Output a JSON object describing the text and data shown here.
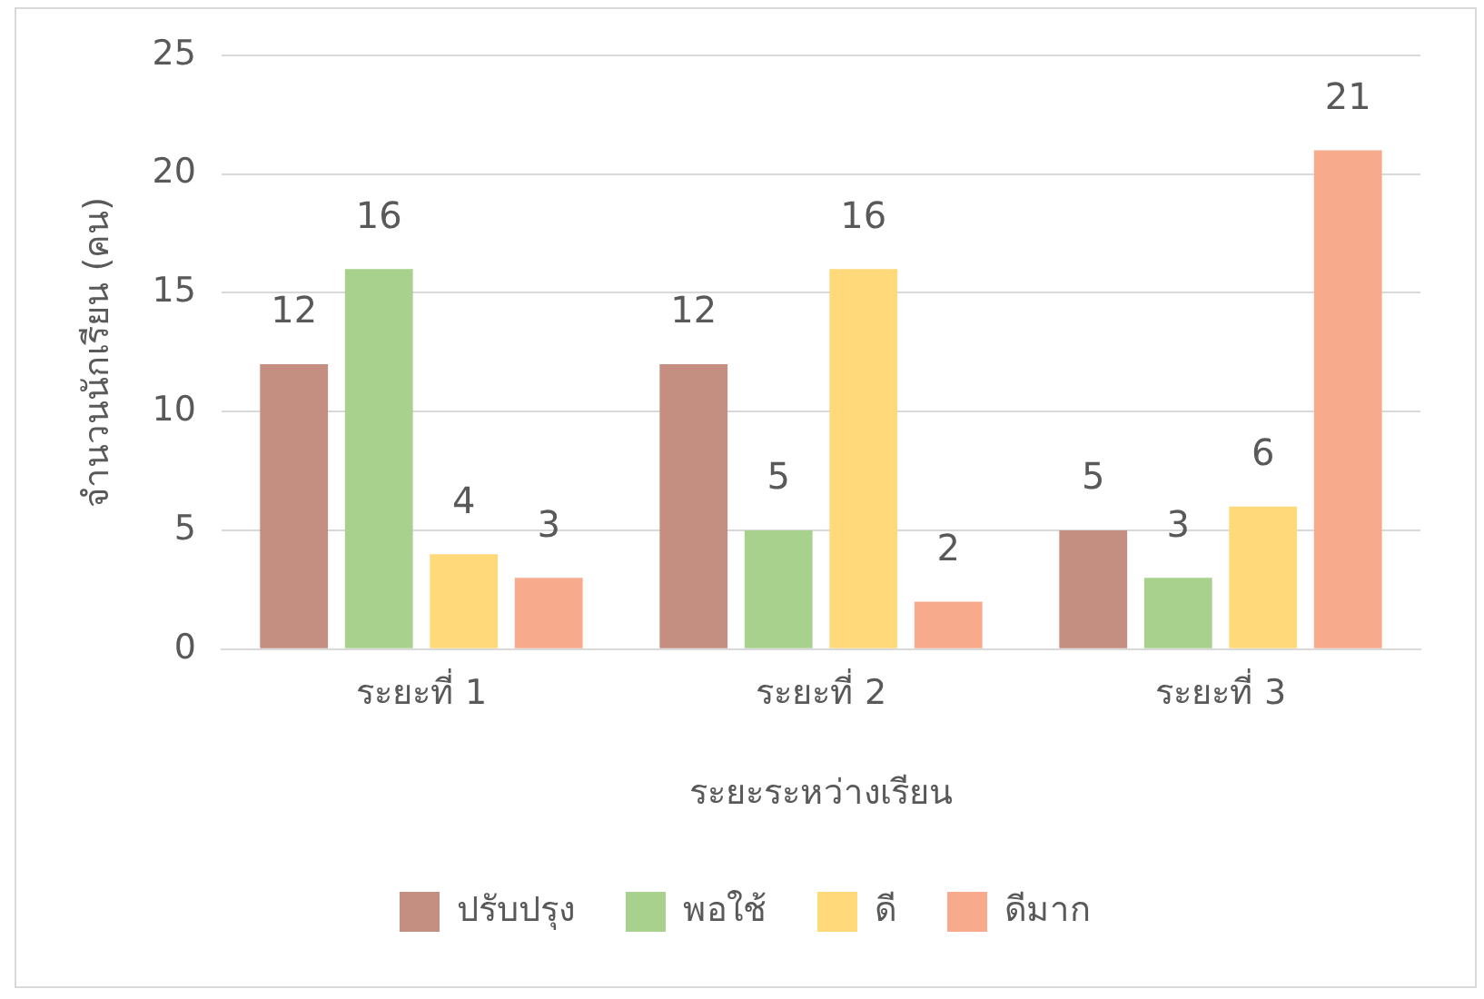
{
  "chart_data": {
    "type": "bar",
    "xlabel": "ระยะระหว่างเรียน",
    "ylabel": "จำนวนนักเรียน (คน)",
    "categories": [
      "ระยะที่ 1",
      "ระยะที่ 2",
      "ระยะที่ 3"
    ],
    "series": [
      {
        "name": "ปรับปรุง",
        "color": "#c48e80",
        "values": [
          12,
          12,
          5
        ]
      },
      {
        "name": "พอใช้",
        "color": "#a9d18e",
        "values": [
          16,
          5,
          3
        ]
      },
      {
        "name": "ดี",
        "color": "#ffd97a",
        "values": [
          4,
          16,
          6
        ]
      },
      {
        "name": "ดีมาก",
        "color": "#f8ab8c",
        "values": [
          3,
          2,
          21
        ]
      }
    ],
    "ylim": [
      0,
      25
    ],
    "yticks": [
      0,
      5,
      10,
      15,
      20,
      25
    ],
    "grid": "y",
    "legend": "bottom",
    "data_labels": true
  }
}
